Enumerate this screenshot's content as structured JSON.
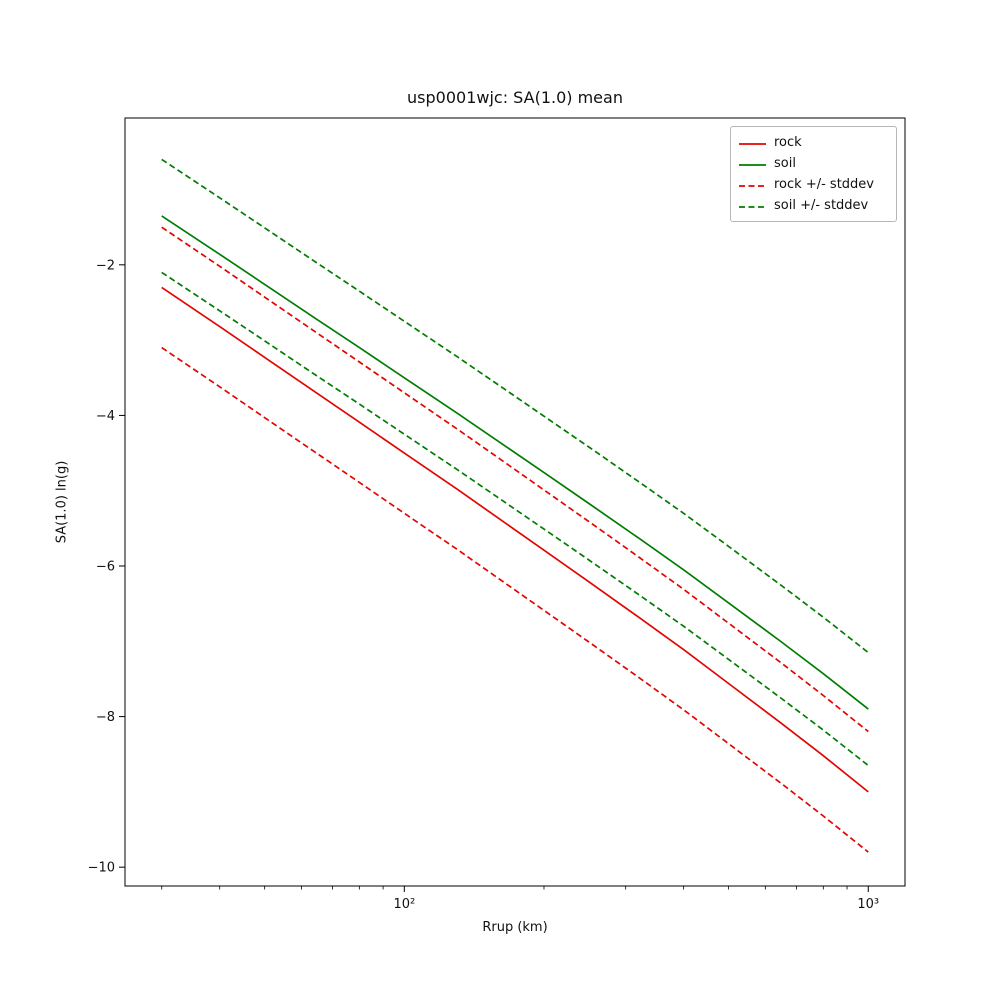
{
  "chart_data": {
    "type": "line",
    "title": "usp0001wjc: SA(1.0) mean",
    "xlabel": "Rrup (km)",
    "ylabel": "SA(1.0) ln(g)",
    "x_scale": "log",
    "grid": false,
    "xlim": [
      25,
      1200
    ],
    "ylim": [
      -10.25,
      -0.05
    ],
    "x_ticks": [
      {
        "value": 100,
        "label": "10²"
      },
      {
        "value": 1000,
        "label": "10³"
      }
    ],
    "y_ticks": [
      {
        "value": -10,
        "label": "−10"
      },
      {
        "value": -8,
        "label": "−8"
      },
      {
        "value": -6,
        "label": "−6"
      },
      {
        "value": -4,
        "label": "−4"
      },
      {
        "value": -2,
        "label": "−2"
      }
    ],
    "x": [
      30,
      40,
      50,
      65,
      80,
      100,
      130,
      160,
      200,
      250,
      320,
      400,
      500,
      650,
      800,
      1000
    ],
    "series": [
      {
        "name": "rock-mean",
        "label": "rock",
        "color": "#e10600",
        "style": "solid",
        "values": [
          -2.3,
          -2.82,
          -3.23,
          -3.71,
          -4.09,
          -4.5,
          -4.98,
          -5.37,
          -5.79,
          -6.21,
          -6.68,
          -7.11,
          -7.56,
          -8.09,
          -8.52,
          -9.0
        ]
      },
      {
        "name": "soil-mean",
        "label": "soil",
        "color": "#007d00",
        "style": "solid",
        "values": [
          -1.35,
          -1.86,
          -2.26,
          -2.73,
          -3.1,
          -3.5,
          -3.97,
          -4.35,
          -4.76,
          -5.17,
          -5.63,
          -6.05,
          -6.49,
          -7.01,
          -7.43,
          -7.9
        ]
      },
      {
        "name": "rock-plus-stddev",
        "label": "rock +/- stddev",
        "color": "#e10600",
        "style": "dashed",
        "values": [
          -1.5,
          -2.02,
          -2.43,
          -2.91,
          -3.29,
          -3.7,
          -4.18,
          -4.57,
          -4.99,
          -5.41,
          -5.88,
          -6.31,
          -6.76,
          -7.29,
          -7.72,
          -8.2
        ]
      },
      {
        "name": "rock-minus-stddev",
        "label": "rock +/- stddev",
        "color": "#e10600",
        "style": "dashed",
        "values": [
          -3.1,
          -3.62,
          -4.03,
          -4.51,
          -4.89,
          -5.3,
          -5.78,
          -6.17,
          -6.59,
          -7.01,
          -7.48,
          -7.91,
          -8.36,
          -8.89,
          -9.32,
          -9.8
        ]
      },
      {
        "name": "soil-plus-stddev",
        "label": "soil +/- stddev",
        "color": "#007d00",
        "style": "dashed",
        "values": [
          -0.6,
          -1.11,
          -1.51,
          -1.98,
          -2.35,
          -2.75,
          -3.22,
          -3.6,
          -4.01,
          -4.42,
          -4.88,
          -5.3,
          -5.74,
          -6.26,
          -6.68,
          -7.15
        ]
      },
      {
        "name": "soil-minus-stddev",
        "label": "soil +/- stddev",
        "color": "#007d00",
        "style": "dashed",
        "values": [
          -2.1,
          -2.61,
          -3.01,
          -3.48,
          -3.85,
          -4.25,
          -4.72,
          -5.1,
          -5.51,
          -5.92,
          -6.38,
          -6.8,
          -7.24,
          -7.76,
          -8.18,
          -8.65
        ]
      }
    ],
    "legend": {
      "position": "upper right",
      "entries": [
        {
          "label": "rock",
          "color": "#e10600",
          "style": "solid"
        },
        {
          "label": "soil",
          "color": "#007d00",
          "style": "solid"
        },
        {
          "label": "rock +/- stddev",
          "color": "#e10600",
          "style": "dashed"
        },
        {
          "label": "soil +/- stddev",
          "color": "#007d00",
          "style": "dashed"
        }
      ]
    }
  }
}
